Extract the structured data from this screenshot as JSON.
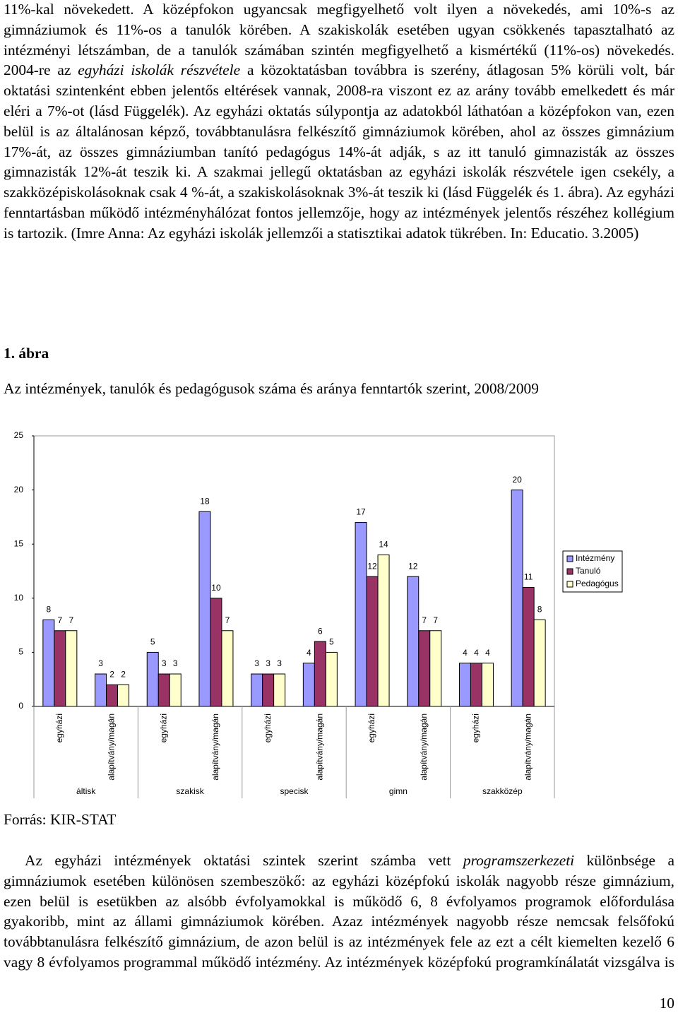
{
  "paragraph_1": [
    "11%-kal növekedett. A középfokon ugyancsak megfigyelhető volt ilyen a növekedés, ami 10%-s az gimnáziumok és 11%-os a tanulók körében. A szakiskolák esetében ugyan csökkenés tapasztalható az intézményi létszámban, de a tanulók számában szintén megfigyelhető a kismértékű (11%-os) növekedés. 2004-re az ",
    "egyházi iskolák részvétele",
    " a közoktatásban továbbra is szerény, átlagosan 5% körüli volt, bár oktatási szintenként ebben jelentős eltérések vannak, 2008-ra viszont ez az arány tovább emelkedett és már eléri a 7%-ot (lásd Függelék). Az egyházi oktatás súlypontja az adatokból láthatóan a középfokon van, ezen belül is az általánosan képző, továbbtanulásra felkészítő gimnáziumok körében, ahol az összes gimnázium 17%-át, az összes gimnáziumban tanító pedagógus 14%-át adják, s az itt tanuló gimnazisták az összes gimnazisták 12%-át teszik ki. A szakmai jellegű oktatásban az egyházi iskolák részvétele igen csekély, a szakközépiskolásoknak csak 4 %-át, a szakiskolásoknak 3%-át teszik ki (lásd Függelék és 1. ábra). Az egyházi fenntartásban működő intézményhálózat fontos jellemzője, hogy az intézmények jelentős részéhez kollégium is tartozik. (Imre Anna: Az egyházi iskolák jellemzői a statisztikai adatok tükrében. In: Educatio. 3.2005)"
  ],
  "figure_label": "1. ábra",
  "figure_caption": "Az intézmények, tanulók és pedagógusok száma és aránya fenntartók szerint, 2008/2009",
  "chart_data": {
    "type": "bar",
    "categories": [
      "egyházi",
      "alapítvány/magán",
      "egyházi",
      "alapítvány/magán",
      "egyházi",
      "alapítvány/magán",
      "egyházi",
      "alapítvány/magán",
      "egyházi",
      "alapítvány/magán"
    ],
    "groups": [
      "áltisk",
      "szakisk",
      "specisk",
      "gimn",
      "szakközép"
    ],
    "series": [
      {
        "name": "Intézmény",
        "color": "#9999ff",
        "values": [
          8,
          3,
          5,
          18,
          3,
          4,
          17,
          12,
          4,
          20
        ]
      },
      {
        "name": "Tanuló",
        "color": "#993366",
        "values": [
          7,
          2,
          3,
          10,
          3,
          6,
          12,
          7,
          4,
          11
        ]
      },
      {
        "name": "Pedagógus",
        "color": "#ffffcc",
        "values": [
          7,
          2,
          3,
          7,
          3,
          5,
          14,
          7,
          4,
          8
        ]
      }
    ],
    "ylim": [
      0,
      25
    ],
    "yticks": [
      0,
      5,
      10,
      15,
      20,
      25
    ],
    "grid": false,
    "legend": "right"
  },
  "source": "Forrás: KIR-STAT",
  "paragraph_2": [
    "Az egyházi intézmények oktatási szintek szerint számba vett ",
    "programszerkezeti",
    " különbsége a gimnáziumok esetében különösen szembeszökő: az egyházi középfokú iskolák nagyobb része gimnázium, ezen belül is esetükben az alsóbb évfolyamokkal is működő 6, 8 évfolyamos programok előfordulása gyakoribb, mint az állami gimnáziumok körében. Azaz intézmények nagyobb része nemcsak felsőfokú továbbtanulásra felkészítő gimnázium, de azon belül is az intézmények fele az ezt a célt kiemelten kezelő 6 vagy 8 évfolyamos programmal működő intézmény. Az intézmények középfokú programkínálatát vizsgálva is"
  ],
  "page_number": "10"
}
